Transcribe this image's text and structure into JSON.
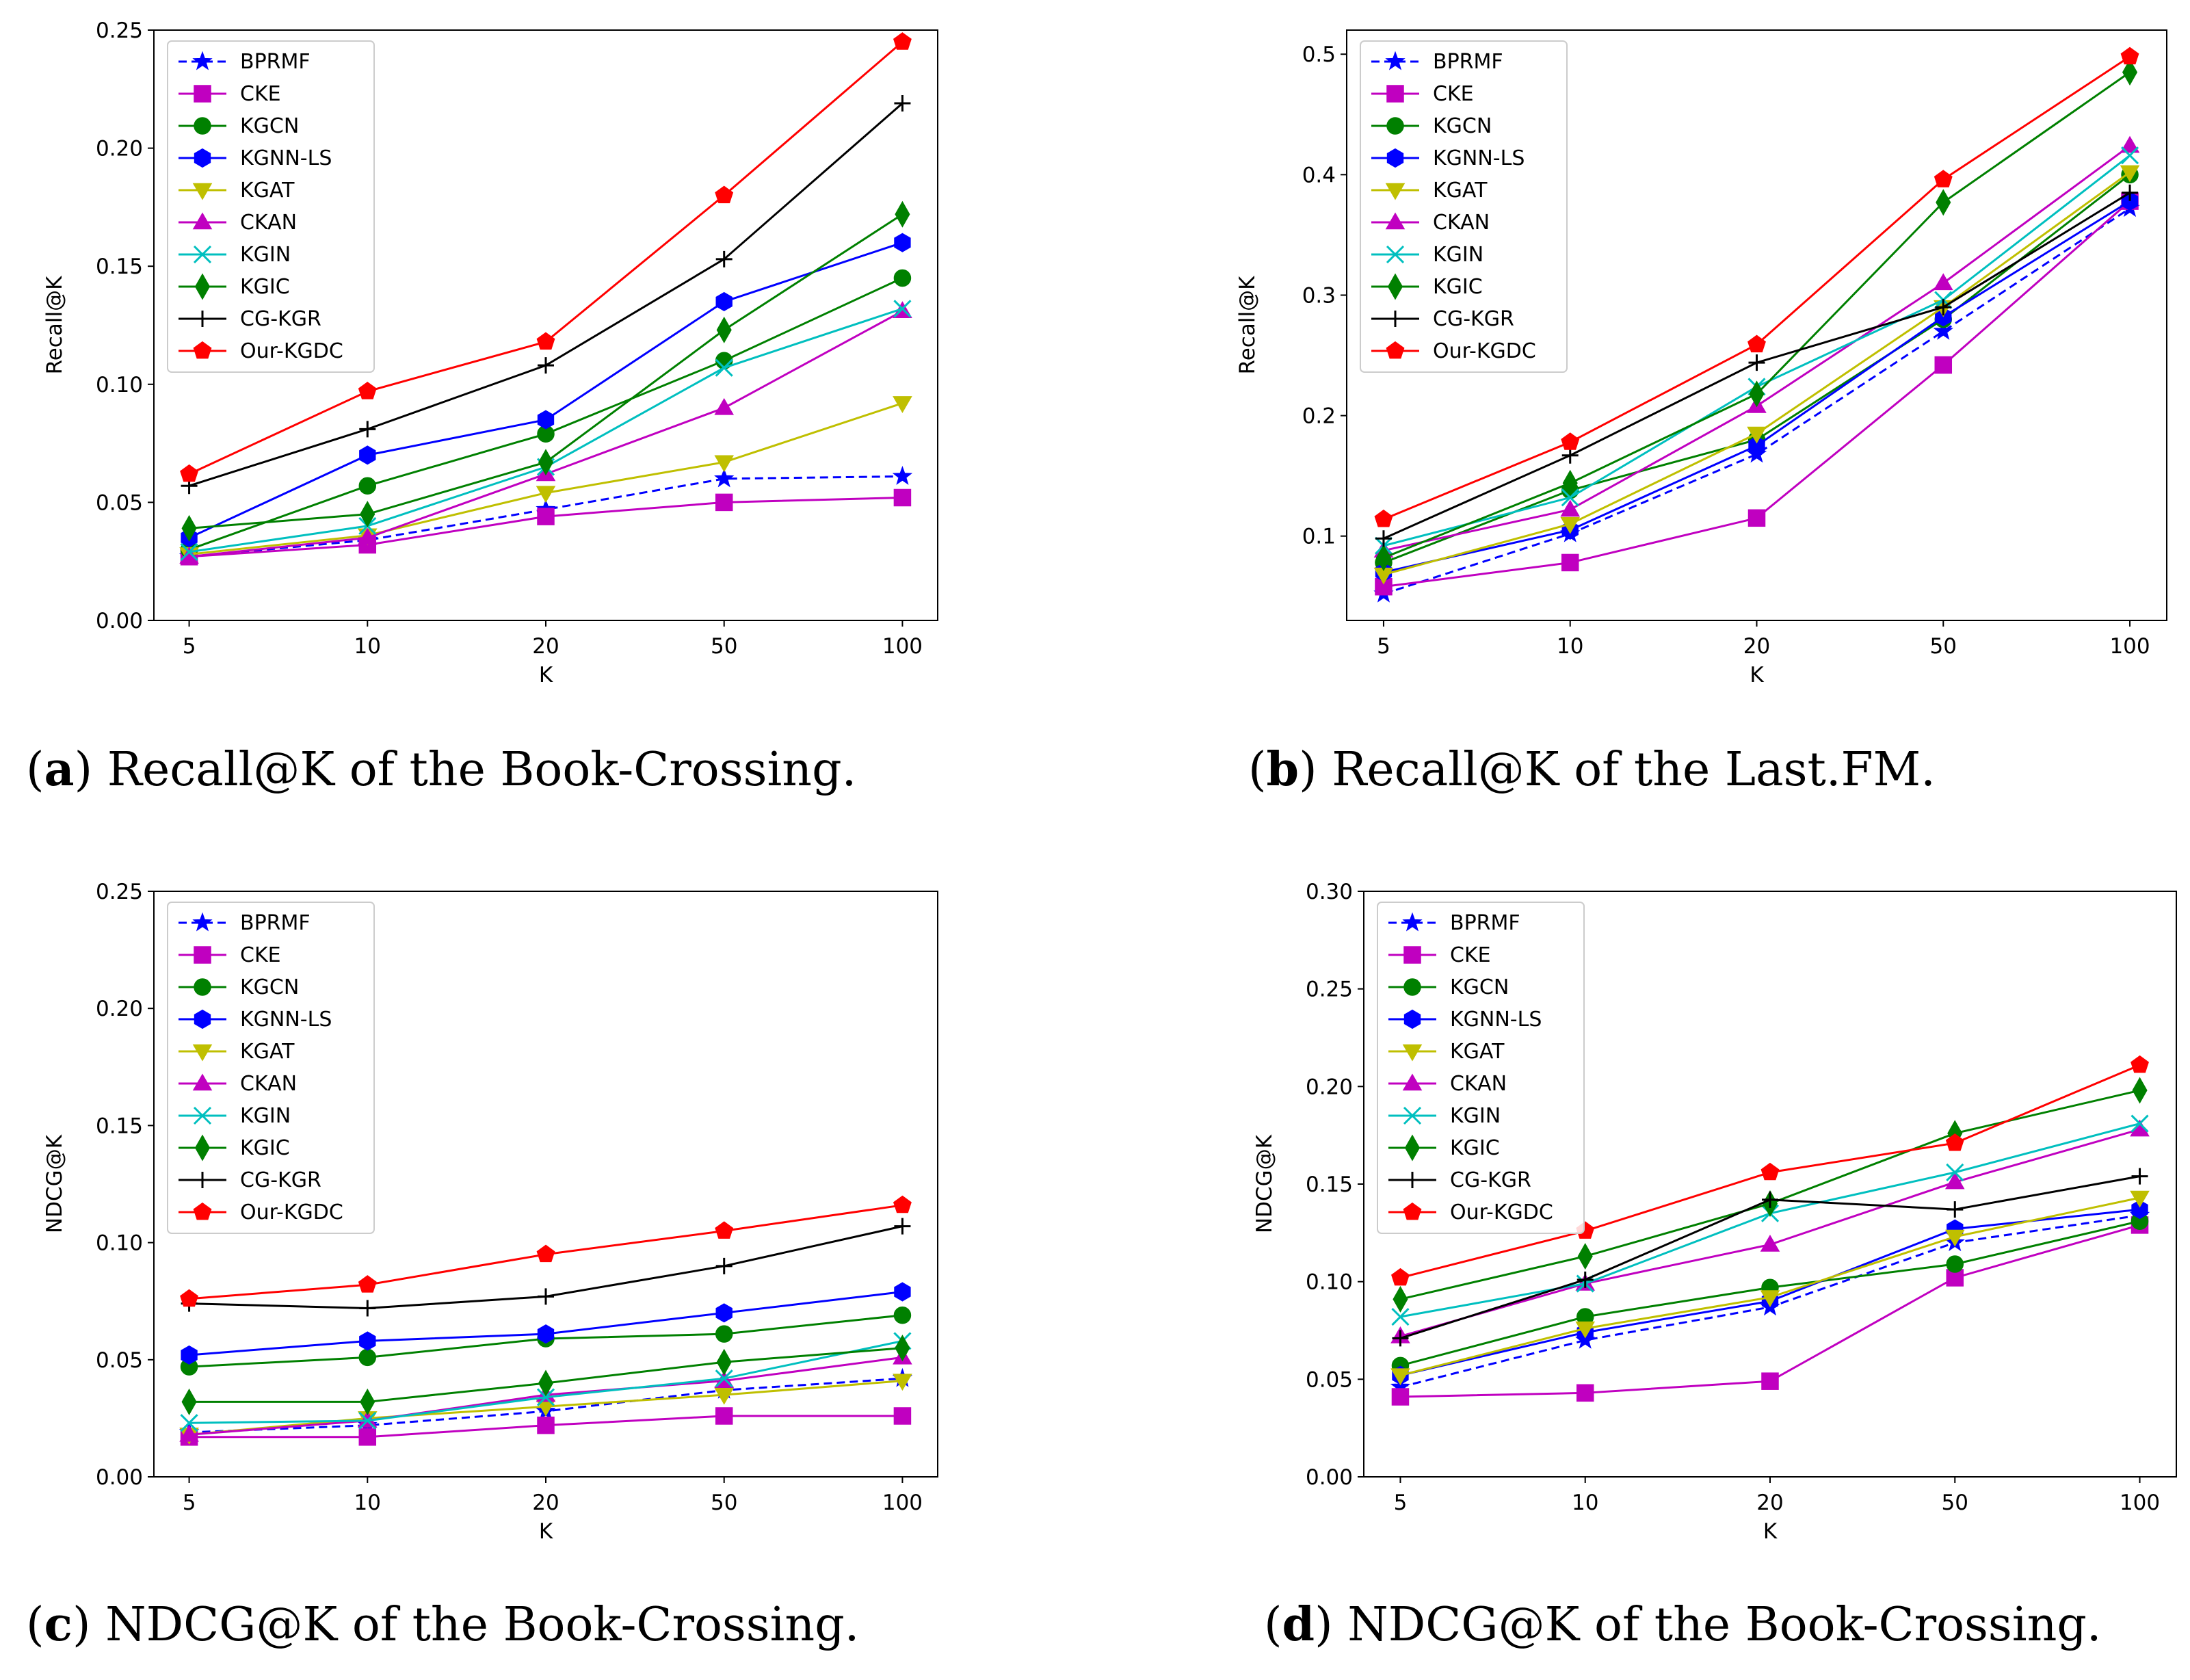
{
  "figure": {
    "captions": [
      {
        "letter": "a",
        "text": "Recall@K of the Book-Crossing."
      },
      {
        "letter": "b",
        "text": "Recall@K of the Last.FM."
      },
      {
        "letter": "c",
        "text": "NDCG@K of the Book-Crossing."
      },
      {
        "letter": "d",
        "text": "NDCG@K of the Book-Crossing."
      }
    ]
  },
  "styles": [
    {
      "name": "BPRMF",
      "color": "#0000ff",
      "marker": "star",
      "dash": true
    },
    {
      "name": "CKE",
      "color": "#c000c0",
      "marker": "square",
      "dash": false
    },
    {
      "name": "KGCN",
      "color": "#008000",
      "marker": "circle",
      "dash": false
    },
    {
      "name": "KGNN-LS",
      "color": "#0000ff",
      "marker": "hexagon",
      "dash": false
    },
    {
      "name": "KGAT",
      "color": "#bfbf00",
      "marker": "tri_down",
      "dash": false
    },
    {
      "name": "CKAN",
      "color": "#c000c0",
      "marker": "tri_up",
      "dash": false
    },
    {
      "name": "KGIN",
      "color": "#00bfbf",
      "marker": "x",
      "dash": false
    },
    {
      "name": "KGIC",
      "color": "#008000",
      "marker": "diamond",
      "dash": false
    },
    {
      "name": "CG-KGR",
      "color": "#000000",
      "marker": "plus",
      "dash": false
    },
    {
      "name": "Our-KGDC",
      "color": "#ff0000",
      "marker": "pentagon",
      "dash": false
    }
  ],
  "chart_data": [
    {
      "type": "line",
      "title": "",
      "xlabel": "K",
      "ylabel": "Recall@K",
      "categories": [
        "5",
        "10",
        "20",
        "50",
        "100"
      ],
      "ylim": [
        0,
        0.25
      ],
      "yticks": [
        "0.00",
        "0.05",
        "0.10",
        "0.15",
        "0.20",
        "0.25"
      ],
      "legend": "upper-left",
      "series": [
        {
          "name": "BPRMF",
          "values": [
            0.027,
            0.034,
            0.047,
            0.06,
            0.061
          ]
        },
        {
          "name": "CKE",
          "values": [
            0.027,
            0.032,
            0.044,
            0.05,
            0.052
          ]
        },
        {
          "name": "KGCN",
          "values": [
            0.03,
            0.057,
            0.079,
            0.11,
            0.145
          ]
        },
        {
          "name": "KGNN-LS",
          "values": [
            0.035,
            0.07,
            0.085,
            0.135,
            0.16
          ]
        },
        {
          "name": "KGAT",
          "values": [
            0.028,
            0.036,
            0.054,
            0.067,
            0.092
          ]
        },
        {
          "name": "CKAN",
          "values": [
            0.027,
            0.035,
            0.062,
            0.09,
            0.131
          ]
        },
        {
          "name": "KGIN",
          "values": [
            0.029,
            0.04,
            0.065,
            0.107,
            0.132
          ]
        },
        {
          "name": "KGIC",
          "values": [
            0.039,
            0.045,
            0.067,
            0.123,
            0.172
          ]
        },
        {
          "name": "CG-KGR",
          "values": [
            0.057,
            0.081,
            0.108,
            0.153,
            0.219
          ]
        },
        {
          "name": "Our-KGDC",
          "values": [
            0.062,
            0.097,
            0.118,
            0.18,
            0.245
          ]
        }
      ]
    },
    {
      "type": "line",
      "title": "",
      "xlabel": "K",
      "ylabel": "Recall@K",
      "categories": [
        "5",
        "10",
        "20",
        "50",
        "100"
      ],
      "ylim": [
        0.03,
        0.52
      ],
      "yticks": [
        "0.1",
        "0.2",
        "0.3",
        "0.4",
        "0.5"
      ],
      "legend": "upper-left",
      "series": [
        {
          "name": "BPRMF",
          "values": [
            0.052,
            0.102,
            0.168,
            0.27,
            0.372
          ]
        },
        {
          "name": "CKE",
          "values": [
            0.058,
            0.078,
            0.115,
            0.242,
            0.378
          ]
        },
        {
          "name": "KGCN",
          "values": [
            0.078,
            0.138,
            0.18,
            0.28,
            0.4
          ]
        },
        {
          "name": "KGNN-LS",
          "values": [
            0.07,
            0.105,
            0.175,
            0.282,
            0.378
          ]
        },
        {
          "name": "KGAT",
          "values": [
            0.068,
            0.11,
            0.185,
            0.29,
            0.402
          ]
        },
        {
          "name": "CKAN",
          "values": [
            0.088,
            0.122,
            0.208,
            0.31,
            0.424
          ]
        },
        {
          "name": "KGIN",
          "values": [
            0.092,
            0.132,
            0.224,
            0.296,
            0.416
          ]
        },
        {
          "name": "KGIC",
          "values": [
            0.082,
            0.144,
            0.218,
            0.377,
            0.485
          ]
        },
        {
          "name": "CG-KGR",
          "values": [
            0.098,
            0.167,
            0.244,
            0.29,
            0.385
          ]
        },
        {
          "name": "Our-KGDC",
          "values": [
            0.114,
            0.178,
            0.259,
            0.396,
            0.498
          ]
        }
      ]
    },
    {
      "type": "line",
      "title": "",
      "xlabel": "K",
      "ylabel": "NDCG@K",
      "categories": [
        "5",
        "10",
        "20",
        "50",
        "100"
      ],
      "ylim": [
        0,
        0.25
      ],
      "yticks": [
        "0.00",
        "0.05",
        "0.10",
        "0.15",
        "0.20",
        "0.25"
      ],
      "legend": "upper-left",
      "series": [
        {
          "name": "BPRMF",
          "values": [
            0.019,
            0.022,
            0.028,
            0.037,
            0.042
          ]
        },
        {
          "name": "CKE",
          "values": [
            0.017,
            0.017,
            0.022,
            0.026,
            0.026
          ]
        },
        {
          "name": "KGCN",
          "values": [
            0.047,
            0.051,
            0.059,
            0.061,
            0.069
          ]
        },
        {
          "name": "KGNN-LS",
          "values": [
            0.052,
            0.058,
            0.061,
            0.07,
            0.079
          ]
        },
        {
          "name": "KGAT",
          "values": [
            0.018,
            0.025,
            0.03,
            0.035,
            0.041
          ]
        },
        {
          "name": "CKAN",
          "values": [
            0.018,
            0.024,
            0.035,
            0.041,
            0.051
          ]
        },
        {
          "name": "KGIN",
          "values": [
            0.023,
            0.024,
            0.034,
            0.042,
            0.058
          ]
        },
        {
          "name": "KGIC",
          "values": [
            0.032,
            0.032,
            0.04,
            0.049,
            0.055
          ]
        },
        {
          "name": "CG-KGR",
          "values": [
            0.074,
            0.072,
            0.077,
            0.09,
            0.107
          ]
        },
        {
          "name": "Our-KGDC",
          "values": [
            0.076,
            0.082,
            0.095,
            0.105,
            0.116
          ]
        }
      ]
    },
    {
      "type": "line",
      "title": "",
      "xlabel": "K",
      "ylabel": "NDCG@K",
      "categories": [
        "5",
        "10",
        "20",
        "50",
        "100"
      ],
      "ylim": [
        0,
        0.3
      ],
      "yticks": [
        "0.00",
        "0.05",
        "0.10",
        "0.15",
        "0.20",
        "0.25",
        "0.30"
      ],
      "legend": "upper-left",
      "series": [
        {
          "name": "BPRMF",
          "values": [
            0.046,
            0.07,
            0.087,
            0.12,
            0.134
          ]
        },
        {
          "name": "CKE",
          "values": [
            0.041,
            0.043,
            0.049,
            0.102,
            0.129
          ]
        },
        {
          "name": "KGCN",
          "values": [
            0.057,
            0.082,
            0.097,
            0.109,
            0.131
          ]
        },
        {
          "name": "KGNN-LS",
          "values": [
            0.052,
            0.074,
            0.09,
            0.127,
            0.137
          ]
        },
        {
          "name": "KGAT",
          "values": [
            0.052,
            0.076,
            0.092,
            0.123,
            0.143
          ]
        },
        {
          "name": "CKAN",
          "values": [
            0.072,
            0.099,
            0.119,
            0.151,
            0.178
          ]
        },
        {
          "name": "KGIN",
          "values": [
            0.082,
            0.099,
            0.135,
            0.156,
            0.181
          ]
        },
        {
          "name": "KGIC",
          "values": [
            0.091,
            0.113,
            0.14,
            0.176,
            0.198
          ]
        },
        {
          "name": "CG-KGR",
          "values": [
            0.071,
            0.101,
            0.142,
            0.137,
            0.154
          ]
        },
        {
          "name": "Our-KGDC",
          "values": [
            0.102,
            0.126,
            0.156,
            0.171,
            0.211
          ]
        }
      ]
    }
  ]
}
